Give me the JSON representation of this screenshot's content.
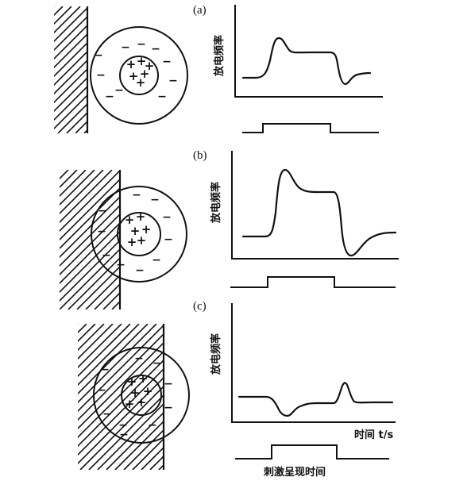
{
  "labels": {
    "panel_a": "(a)",
    "panel_b": "(b)",
    "panel_c": "(c)",
    "y_axis": "放电频率",
    "x_axis": "时间 t/s",
    "stimulus": "刺激呈现时间"
  },
  "signs": {
    "center": "+",
    "surround": "−"
  }
}
